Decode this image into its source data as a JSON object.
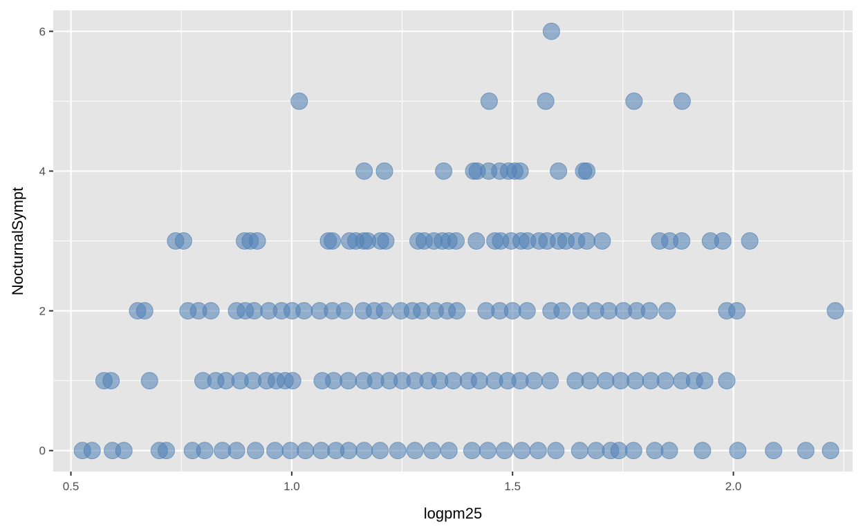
{
  "chart_data": {
    "type": "scatter",
    "xlabel": "logpm25",
    "ylabel": "NocturnalSympt",
    "xlim": [
      0.46,
      2.27
    ],
    "ylim": [
      -0.3,
      6.3
    ],
    "x_ticks": [
      0.5,
      1.0,
      1.5,
      2.0
    ],
    "x_tick_labels": [
      "0.5",
      "1.0",
      "1.5",
      "2.0"
    ],
    "y_ticks": [
      0,
      2,
      4,
      6
    ],
    "y_tick_labels": [
      "0",
      "2",
      "4",
      "6"
    ],
    "grid": true,
    "legend": "none",
    "colors": {
      "point": "#4f7fb4",
      "panel": "#e5e5e5",
      "grid_major": "#ffffff"
    },
    "series": [
      {
        "points": [
          [
            1.588,
            6
          ],
          [
            1.017,
            5
          ],
          [
            1.447,
            5
          ],
          [
            1.575,
            5
          ],
          [
            1.775,
            5
          ],
          [
            1.884,
            5
          ],
          [
            1.164,
            4
          ],
          [
            1.21,
            4
          ],
          [
            1.344,
            4
          ],
          [
            1.412,
            4
          ],
          [
            1.42,
            4
          ],
          [
            1.446,
            4
          ],
          [
            1.471,
            4
          ],
          [
            1.491,
            4
          ],
          [
            1.505,
            4
          ],
          [
            1.517,
            4
          ],
          [
            1.604,
            4
          ],
          [
            1.661,
            4
          ],
          [
            1.668,
            4
          ],
          [
            0.737,
            3
          ],
          [
            0.755,
            3
          ],
          [
            0.893,
            3
          ],
          [
            0.906,
            3
          ],
          [
            0.922,
            3
          ],
          [
            1.083,
            3
          ],
          [
            1.092,
            3
          ],
          [
            1.131,
            3
          ],
          [
            1.145,
            3
          ],
          [
            1.163,
            3
          ],
          [
            1.172,
            3
          ],
          [
            1.201,
            3
          ],
          [
            1.213,
            3
          ],
          [
            1.286,
            3
          ],
          [
            1.3,
            3
          ],
          [
            1.322,
            3
          ],
          [
            1.341,
            3
          ],
          [
            1.356,
            3
          ],
          [
            1.372,
            3
          ],
          [
            1.418,
            3
          ],
          [
            1.46,
            3
          ],
          [
            1.473,
            3
          ],
          [
            1.497,
            3
          ],
          [
            1.519,
            3
          ],
          [
            1.534,
            3
          ],
          [
            1.56,
            3
          ],
          [
            1.578,
            3
          ],
          [
            1.604,
            3
          ],
          [
            1.621,
            3
          ],
          [
            1.645,
            3
          ],
          [
            1.668,
            3
          ],
          [
            1.703,
            3
          ],
          [
            1.833,
            3
          ],
          [
            1.856,
            3
          ],
          [
            1.883,
            3
          ],
          [
            1.948,
            3
          ],
          [
            1.976,
            3
          ],
          [
            2.037,
            3
          ],
          [
            0.651,
            2
          ],
          [
            0.667,
            2
          ],
          [
            0.765,
            2
          ],
          [
            0.789,
            2
          ],
          [
            0.817,
            2
          ],
          [
            0.875,
            2
          ],
          [
            0.895,
            2
          ],
          [
            0.915,
            2
          ],
          [
            0.948,
            2
          ],
          [
            0.977,
            2
          ],
          [
            1.001,
            2
          ],
          [
            1.028,
            2
          ],
          [
            1.063,
            2
          ],
          [
            1.092,
            2
          ],
          [
            1.12,
            2
          ],
          [
            1.162,
            2
          ],
          [
            1.187,
            2
          ],
          [
            1.21,
            2
          ],
          [
            1.247,
            2
          ],
          [
            1.273,
            2
          ],
          [
            1.294,
            2
          ],
          [
            1.325,
            2
          ],
          [
            1.352,
            2
          ],
          [
            1.374,
            2
          ],
          [
            1.44,
            2
          ],
          [
            1.471,
            2
          ],
          [
            1.5,
            2
          ],
          [
            1.533,
            2
          ],
          [
            1.587,
            2
          ],
          [
            1.612,
            2
          ],
          [
            1.655,
            2
          ],
          [
            1.688,
            2
          ],
          [
            1.718,
            2
          ],
          [
            1.751,
            2
          ],
          [
            1.781,
            2
          ],
          [
            1.81,
            2
          ],
          [
            1.85,
            2
          ],
          [
            1.985,
            2
          ],
          [
            2.008,
            2
          ],
          [
            2.231,
            2
          ],
          [
            0.575,
            1
          ],
          [
            0.591,
            1
          ],
          [
            0.678,
            1
          ],
          [
            0.799,
            1
          ],
          [
            0.828,
            1
          ],
          [
            0.851,
            1
          ],
          [
            0.883,
            1
          ],
          [
            0.912,
            1
          ],
          [
            0.943,
            1
          ],
          [
            0.965,
            1
          ],
          [
            0.985,
            1
          ],
          [
            1.002,
            1
          ],
          [
            1.069,
            1
          ],
          [
            1.095,
            1
          ],
          [
            1.128,
            1
          ],
          [
            1.163,
            1
          ],
          [
            1.19,
            1
          ],
          [
            1.221,
            1
          ],
          [
            1.25,
            1
          ],
          [
            1.279,
            1
          ],
          [
            1.309,
            1
          ],
          [
            1.335,
            1
          ],
          [
            1.366,
            1
          ],
          [
            1.4,
            1
          ],
          [
            1.425,
            1
          ],
          [
            1.459,
            1
          ],
          [
            1.489,
            1
          ],
          [
            1.517,
            1
          ],
          [
            1.549,
            1
          ],
          [
            1.585,
            1
          ],
          [
            1.642,
            1
          ],
          [
            1.675,
            1
          ],
          [
            1.711,
            1
          ],
          [
            1.745,
            1
          ],
          [
            1.778,
            1
          ],
          [
            1.813,
            1
          ],
          [
            1.846,
            1
          ],
          [
            1.883,
            1
          ],
          [
            1.912,
            1
          ],
          [
            1.935,
            1
          ],
          [
            1.985,
            1
          ],
          [
            0.526,
            0
          ],
          [
            0.548,
            0
          ],
          [
            0.594,
            0
          ],
          [
            0.62,
            0
          ],
          [
            0.7,
            0
          ],
          [
            0.716,
            0
          ],
          [
            0.775,
            0
          ],
          [
            0.803,
            0
          ],
          [
            0.843,
            0
          ],
          [
            0.875,
            0
          ],
          [
            0.918,
            0
          ],
          [
            0.962,
            0
          ],
          [
            0.997,
            0
          ],
          [
            1.031,
            0
          ],
          [
            1.067,
            0
          ],
          [
            1.1,
            0
          ],
          [
            1.129,
            0
          ],
          [
            1.164,
            0
          ],
          [
            1.2,
            0
          ],
          [
            1.24,
            0
          ],
          [
            1.279,
            0
          ],
          [
            1.318,
            0
          ],
          [
            1.356,
            0
          ],
          [
            1.408,
            0
          ],
          [
            1.444,
            0
          ],
          [
            1.482,
            0
          ],
          [
            1.521,
            0
          ],
          [
            1.558,
            0
          ],
          [
            1.598,
            0
          ],
          [
            1.652,
            0
          ],
          [
            1.689,
            0
          ],
          [
            1.722,
            0
          ],
          [
            1.741,
            0
          ],
          [
            1.774,
            0
          ],
          [
            1.822,
            0
          ],
          [
            1.855,
            0
          ],
          [
            1.93,
            0
          ],
          [
            2.01,
            0
          ],
          [
            2.091,
            0
          ],
          [
            2.164,
            0
          ],
          [
            2.22,
            0
          ]
        ]
      }
    ]
  }
}
